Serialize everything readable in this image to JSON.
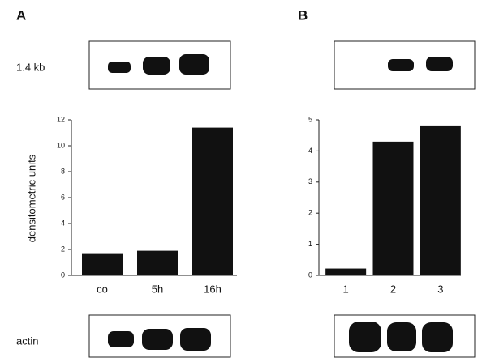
{
  "panel_labels": [
    "A",
    "B"
  ],
  "blot_labels": {
    "top": "1.4 kb",
    "bottom": "actin"
  },
  "chart_data": [
    {
      "type": "bar",
      "ylabel": "densitometric units",
      "categories": [
        "co",
        "5h",
        "16h"
      ],
      "values": [
        1.65,
        1.9,
        11.4
      ],
      "color": "#111111",
      "ylim": [
        0,
        12
      ],
      "yticks": [
        0,
        2,
        4,
        6,
        8,
        10,
        12
      ]
    },
    {
      "type": "bar",
      "categories": [
        "1",
        "2",
        "3"
      ],
      "values": [
        0.22,
        4.3,
        4.82
      ],
      "color": "#111111",
      "ylim": [
        0,
        5
      ],
      "yticks": [
        0,
        1,
        2,
        3,
        4,
        5
      ]
    }
  ]
}
